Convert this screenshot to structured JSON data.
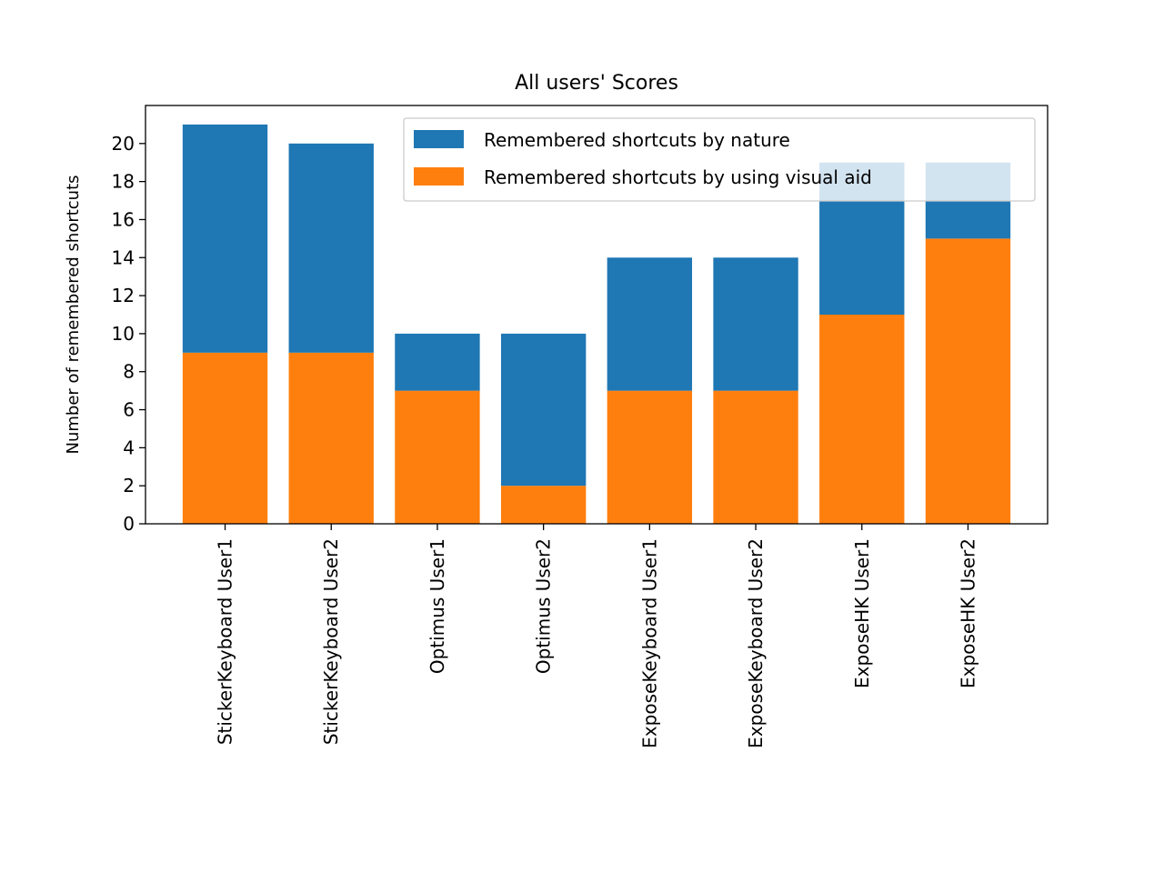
{
  "chart_data": {
    "type": "bar",
    "stacked": true,
    "title": "All users' Scores",
    "xlabel": "",
    "ylabel": "Number of remembered shortcuts",
    "categories": [
      "StickerKeyboard User1",
      "StickerKeyboard User2",
      "Optimus User1",
      "Optimus User2",
      "ExposeKeyboard User1",
      "ExposeKeyboard User2",
      "ExposeHK User1",
      "ExposeHK User2"
    ],
    "series": [
      {
        "name": "Remembered shortcuts by using visual aid",
        "color": "#ff7f0e",
        "values": [
          9,
          9,
          7,
          2,
          7,
          7,
          11,
          15
        ]
      },
      {
        "name": "Remembered shortcuts by nature",
        "color": "#1f77b4",
        "values": [
          12,
          11,
          3,
          8,
          7,
          7,
          8,
          4
        ]
      }
    ],
    "ylim": [
      0,
      22
    ],
    "yticks": [
      0,
      2,
      4,
      6,
      8,
      10,
      12,
      14,
      16,
      18,
      20
    ],
    "grid": false,
    "legend": {
      "position": "top-right",
      "order": [
        "Remembered shortcuts by nature",
        "Remembered shortcuts by using visual aid"
      ]
    }
  }
}
